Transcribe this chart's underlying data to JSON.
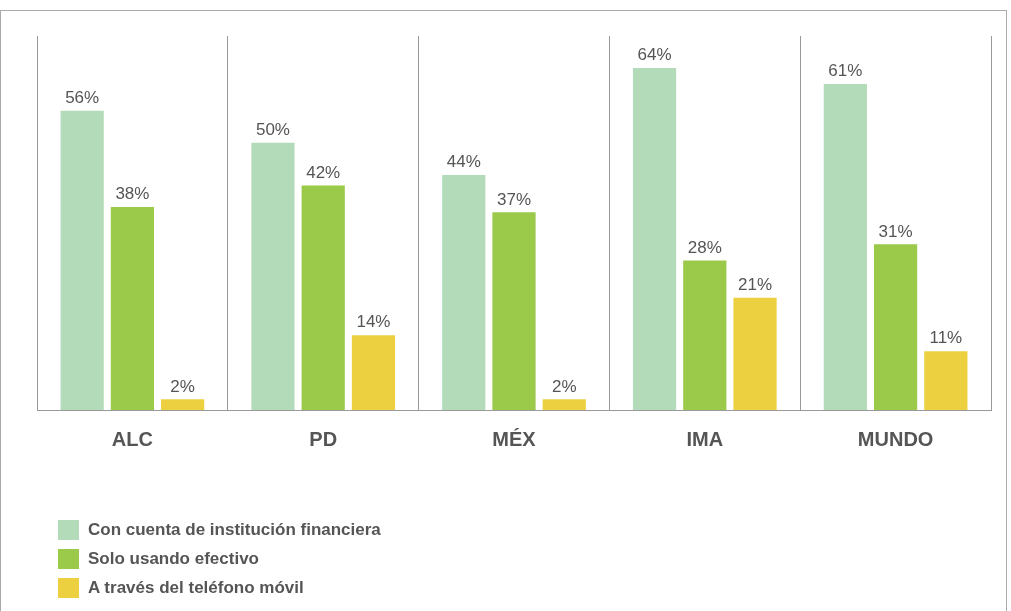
{
  "chart_data": {
    "type": "bar",
    "categories": [
      "ALC",
      "PD",
      "MÉX",
      "IMA",
      "MUNDO"
    ],
    "series": [
      {
        "name": "Con cuenta de institución financiera",
        "color": "#b3dbb9",
        "values": [
          56,
          50,
          44,
          64,
          61
        ],
        "value_labels": [
          "56%",
          "50%",
          "44%",
          "64%",
          "61%"
        ]
      },
      {
        "name": "Solo usando efectivo",
        "color": "#9bc94a",
        "values": [
          38,
          42,
          37,
          28,
          31
        ],
        "value_labels": [
          "38%",
          "42%",
          "37%",
          "28%",
          "31%"
        ]
      },
      {
        "name": "A través del teléfono móvil",
        "color": "#ecd03f",
        "values": [
          2,
          14,
          2,
          21,
          11
        ],
        "value_labels": [
          "2%",
          "14%",
          "2%",
          "21%",
          "11%"
        ]
      }
    ],
    "grid": "x",
    "legend": "bottom left",
    "tick_labels": "x"
  }
}
